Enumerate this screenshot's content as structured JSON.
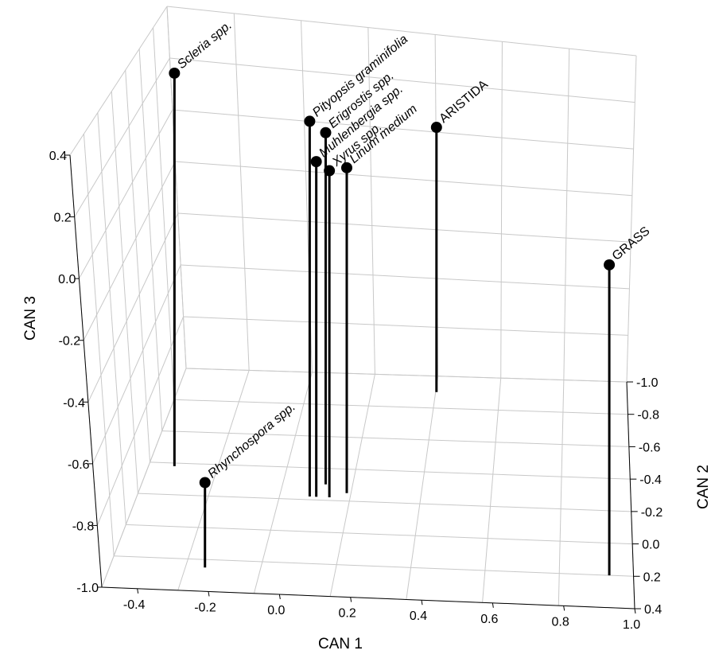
{
  "chart_data": {
    "type": "scatter",
    "projection": "3d",
    "xlabel": "CAN 1",
    "ylabel": "CAN 2",
    "zlabel": "CAN 3",
    "xlim": [
      -0.5,
      1.0
    ],
    "ylim": [
      -1.0,
      0.4
    ],
    "zlim": [
      -1.0,
      0.4
    ],
    "x_ticks": [
      "-0.4",
      "-0.2",
      "0.0",
      "0.2",
      "0.4",
      "0.6",
      "0.8",
      "1.0"
    ],
    "y_ticks": [
      "-1.0",
      "-0.8",
      "-0.6",
      "-0.4",
      "-0.2",
      "0.0",
      "0.2",
      "0.4"
    ],
    "z_ticks": [
      "0.4",
      "0.2",
      "0.0",
      "-0.2",
      "-0.4",
      "-0.6",
      "-0.8",
      "-1.0"
    ],
    "drop_lines": true,
    "grid": true,
    "points": [
      {
        "label": "Scleria spp.",
        "x": -0.42,
        "y": -0.38,
        "z": 0.4
      },
      {
        "label": "Pityopsis graminifolia",
        "x": 0.02,
        "y": -0.22,
        "z": 0.31
      },
      {
        "label": "Erigrostis spp.",
        "x": 0.06,
        "y": -0.3,
        "z": 0.24
      },
      {
        "label": "Muhlenbergia spp.",
        "x": 0.04,
        "y": -0.22,
        "z": 0.17
      },
      {
        "label": "Xyrus spp.",
        "x": 0.08,
        "y": -0.22,
        "z": 0.14
      },
      {
        "label": "Linum medium",
        "x": 0.13,
        "y": -0.25,
        "z": 0.14
      },
      {
        "label": "ARISTIDA",
        "x": 0.36,
        "y": -0.9,
        "z": 0.01
      },
      {
        "label": "GRASS",
        "x": 0.93,
        "y": 0.2,
        "z": 0.03
      },
      {
        "label": "Rhynchospora spp.",
        "x": -0.23,
        "y": 0.25,
        "z": -0.72
      }
    ]
  }
}
